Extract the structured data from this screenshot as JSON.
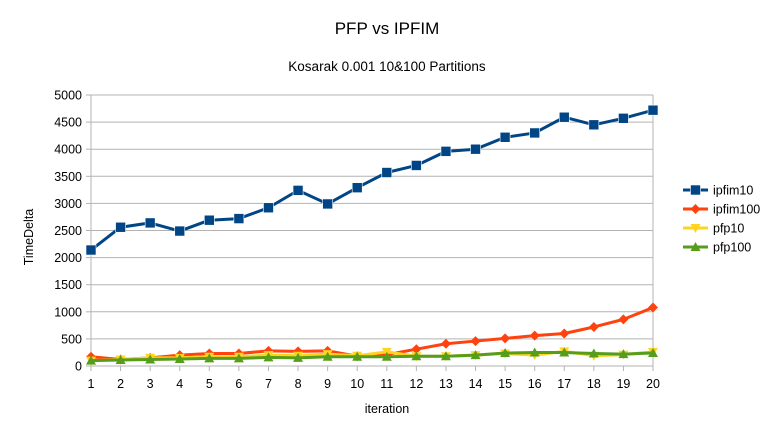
{
  "chart_data": {
    "type": "line",
    "title": "PFP vs IPFIM",
    "subtitle": "Kosarak 0.001 10&100 Partitions",
    "xlabel": "iteration",
    "ylabel": "TimeDelta",
    "categories": [
      "1",
      "2",
      "3",
      "4",
      "5",
      "6",
      "7",
      "8",
      "9",
      "10",
      "11",
      "12",
      "13",
      "14",
      "15",
      "16",
      "17",
      "18",
      "19",
      "20"
    ],
    "ylim": [
      0,
      5000
    ],
    "yticks": [
      "0",
      "500",
      "1000",
      "1500",
      "2000",
      "2500",
      "3000",
      "3500",
      "4000",
      "4500",
      "5000"
    ],
    "grid": "horizontal",
    "legend_position": "right",
    "series": [
      {
        "name": "ipfim10",
        "color": "#004586",
        "marker": "square",
        "values": [
          2140,
          2560,
          2640,
          2490,
          2690,
          2720,
          2920,
          3240,
          2990,
          3290,
          3570,
          3700,
          3960,
          4000,
          4220,
          4300,
          4590,
          4450,
          4570,
          4720
        ]
      },
      {
        "name": "ipfim100",
        "color": "#ff420e",
        "marker": "diamond",
        "values": [
          170,
          120,
          150,
          200,
          230,
          230,
          280,
          270,
          280,
          180,
          210,
          310,
          410,
          460,
          510,
          560,
          600,
          720,
          860,
          1080
        ]
      },
      {
        "name": "pfp10",
        "color": "#ffd320",
        "marker": "triangle-down",
        "values": [
          100,
          120,
          150,
          150,
          170,
          170,
          200,
          190,
          220,
          190,
          260,
          180,
          180,
          200,
          230,
          200,
          270,
          190,
          210,
          260
        ]
      },
      {
        "name": "pfp100",
        "color": "#579d1c",
        "marker": "triangle-up",
        "values": [
          100,
          110,
          120,
          130,
          140,
          140,
          160,
          150,
          170,
          170,
          170,
          180,
          180,
          200,
          240,
          250,
          250,
          230,
          220,
          240
        ]
      }
    ]
  }
}
